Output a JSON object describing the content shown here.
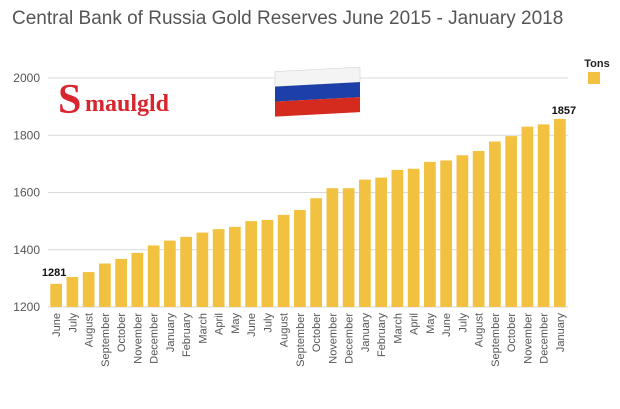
{
  "chart_data": {
    "type": "bar",
    "title": "Central Bank of Russia Gold Reserves June 2015 - January 2018",
    "xlabel": "",
    "ylabel": "",
    "ylim": [
      1200,
      2000
    ],
    "yticks": [
      1200,
      1400,
      1600,
      1800,
      2000
    ],
    "grid": true,
    "legend_position": "top-right",
    "bar_color": "#F2C140",
    "categories": [
      "June",
      "July",
      "August",
      "September",
      "October",
      "November",
      "December",
      "January",
      "February",
      "March",
      "April",
      "May",
      "June",
      "July",
      "August",
      "September",
      "October",
      "November",
      "December",
      "January",
      "February",
      "March",
      "April",
      "May",
      "June",
      "July",
      "August",
      "September",
      "October",
      "November",
      "December",
      "January"
    ],
    "series": [
      {
        "name": "Tons",
        "values": [
          1281,
          1305,
          1322,
          1352,
          1368,
          1389,
          1415,
          1432,
          1445,
          1460,
          1472,
          1480,
          1500,
          1504,
          1522,
          1539,
          1580,
          1615,
          1615,
          1645,
          1652,
          1679,
          1683,
          1707,
          1712,
          1730,
          1745,
          1778,
          1797,
          1830,
          1838,
          1857
        ]
      }
    ],
    "annotations": [
      {
        "label": "1281",
        "category_index": 0
      },
      {
        "label": "1857",
        "category_index": 31
      }
    ]
  },
  "logo": {
    "text": "Smaulgld",
    "color": "#D8262E"
  },
  "flag": {
    "colors": [
      "#ffffff",
      "#1C3FA8",
      "#D52B1E"
    ]
  }
}
